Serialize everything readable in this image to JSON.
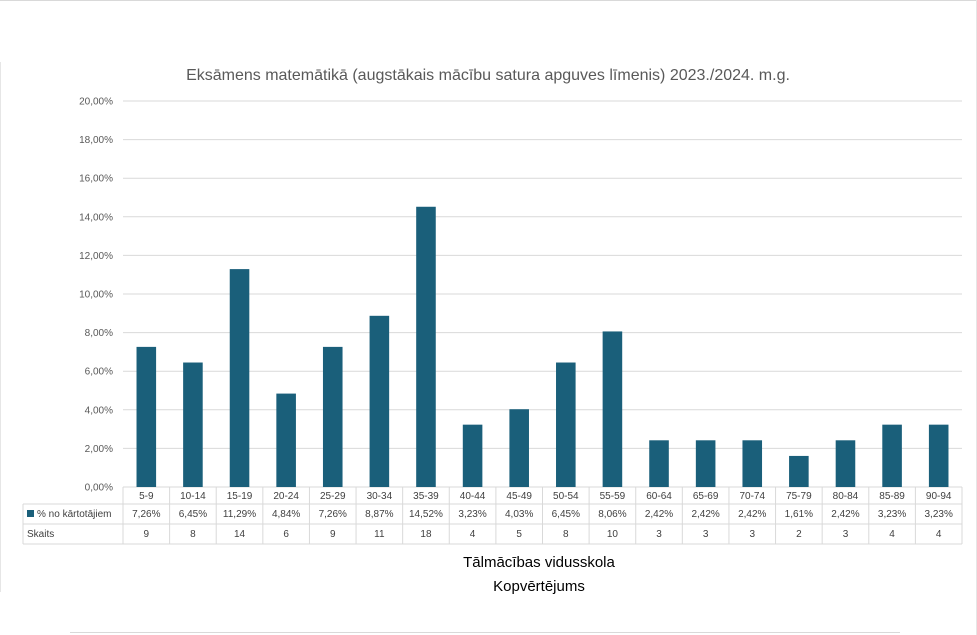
{
  "chart_data": {
    "type": "bar",
    "title": "Eksāmens matemātikā (augstākais mācību satura apguves līmenis) 2023./2024. m.g.",
    "categories": [
      "5-9",
      "10-14",
      "15-19",
      "20-24",
      "25-29",
      "30-34",
      "35-39",
      "40-44",
      "45-49",
      "50-54",
      "55-59",
      "60-64",
      "65-69",
      "70-74",
      "75-79",
      "80-84",
      "85-89",
      "90-94"
    ],
    "series": [
      {
        "name": "% no kārtotājiem",
        "values": [
          7.26,
          6.45,
          11.29,
          4.84,
          7.26,
          8.87,
          14.52,
          3.23,
          4.03,
          6.45,
          8.06,
          2.42,
          2.42,
          2.42,
          1.61,
          2.42,
          3.23,
          3.23
        ],
        "labels": [
          "7,26%",
          "6,45%",
          "11,29%",
          "4,84%",
          "7,26%",
          "8,87%",
          "14,52%",
          "3,23%",
          "4,03%",
          "6,45%",
          "8,06%",
          "2,42%",
          "2,42%",
          "2,42%",
          "1,61%",
          "2,42%",
          "3,23%",
          "3,23%"
        ]
      }
    ],
    "table_rows": [
      {
        "name": "Skaits",
        "values": [
          "9",
          "8",
          "14",
          "6",
          "9",
          "11",
          "18",
          "4",
          "5",
          "8",
          "10",
          "3",
          "3",
          "3",
          "2",
          "3",
          "4",
          "4"
        ]
      }
    ],
    "ylim": [
      0,
      20
    ],
    "yticks": [
      "0,00%",
      "2,00%",
      "4,00%",
      "6,00%",
      "8,00%",
      "10,00%",
      "12,00%",
      "14,00%",
      "16,00%",
      "18,00%",
      "20,00%"
    ],
    "grid": true,
    "legend": "in data table",
    "category_labels": [
      "Tālmācības vidusskola",
      "Kopvērtējums"
    ],
    "bar_color": "#1a5f7a"
  }
}
